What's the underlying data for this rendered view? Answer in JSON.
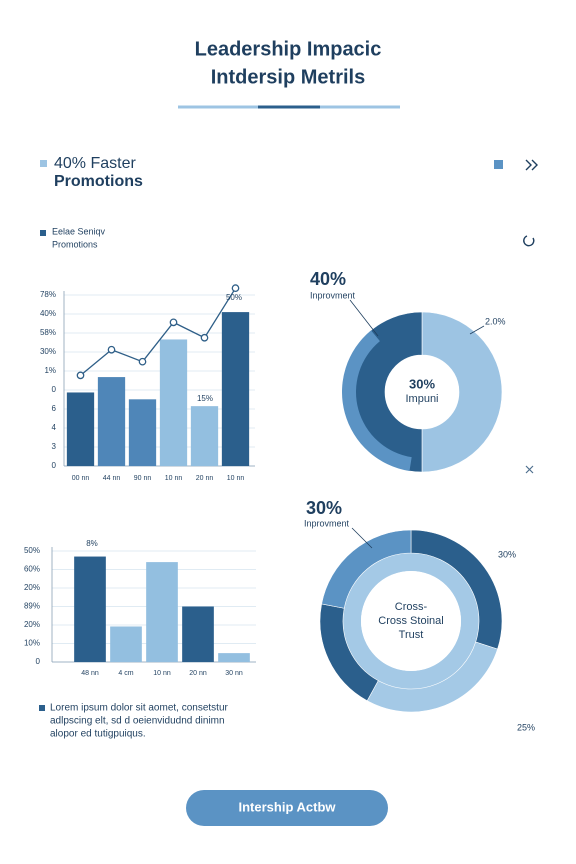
{
  "header": {
    "title": [
      "Leadership Impacic",
      "Intdersip Metrils"
    ]
  },
  "highlight": {
    "lines": [
      "40% Faster",
      "Promotions"
    ]
  },
  "note": {
    "lines": [
      "Eelae Seniqv",
      "Promotions"
    ]
  },
  "chart_data": [
    {
      "type": "bar",
      "y_labels": [
        "78%",
        "40%",
        "58%",
        "30%",
        "1%",
        "0",
        "6",
        "4",
        "3",
        "0"
      ],
      "categories": [
        "00 nn",
        "44 nn",
        "90 nn",
        "10 nn",
        "20 nn",
        "10 nn"
      ],
      "series": [
        {
          "type": "bar",
          "colors": [
            "#2b5f8c",
            "#4f86b8",
            "#4f86b8",
            "#93bfe0",
            "#93bfe0",
            "#2b5f8c"
          ],
          "values": [
            43,
            52,
            39,
            74,
            35,
            90
          ]
        },
        {
          "type": "line",
          "color": "#2f5f88",
          "values": [
            53,
            68,
            61,
            84,
            75,
            104
          ]
        }
      ],
      "ylim": [
        0,
        100
      ],
      "grid": true,
      "annotations": [
        "50%",
        "15%"
      ]
    },
    {
      "type": "donut",
      "headline": "40%",
      "subtitle": "Inprovment",
      "center_text": [
        "30%",
        "Impuni"
      ],
      "side_labels": [
        "2.0%"
      ],
      "values": [
        50,
        50
      ],
      "colors": [
        "#9dc4e3",
        "#2b5f8c"
      ]
    },
    {
      "type": "bar",
      "y_labels": [
        "50%",
        "60%",
        "20%",
        "89%",
        "20%",
        "10%",
        "0"
      ],
      "categories": [
        "48 nn",
        "4 cm",
        "10 nn",
        "20 nn",
        "30 nn"
      ],
      "series": [
        {
          "type": "bar",
          "colors": [
            "#2b5f8c",
            "#93bfe0",
            "#93bfe0",
            "#2b5f8c",
            "#93bfe0"
          ],
          "values": [
            95,
            32,
            90,
            50,
            8
          ]
        }
      ],
      "ylim": [
        0,
        100
      ],
      "grid": true,
      "annotations": [
        "8%"
      ]
    },
    {
      "type": "donut",
      "headline": "30%",
      "subtitle": "Inprovment",
      "center_text": [
        "Cross-",
        "Cross Stoinal",
        "Trust"
      ],
      "side_labels": [
        "30%",
        "25%"
      ],
      "values": [
        30,
        28,
        20,
        22
      ],
      "colors": [
        "#2b5f8c",
        "#a4c9e6",
        "#2b5f8c",
        "#5b93c4"
      ]
    }
  ],
  "paragraph": {
    "lines": [
      "Lorem ipsum dolor sit aomet, consetstur",
      "adlpscing elt, sd d oeienvidudnd dinimn",
      "alopor ed tutigpuiqus."
    ]
  },
  "button": {
    "label": "Intership Actbw"
  }
}
